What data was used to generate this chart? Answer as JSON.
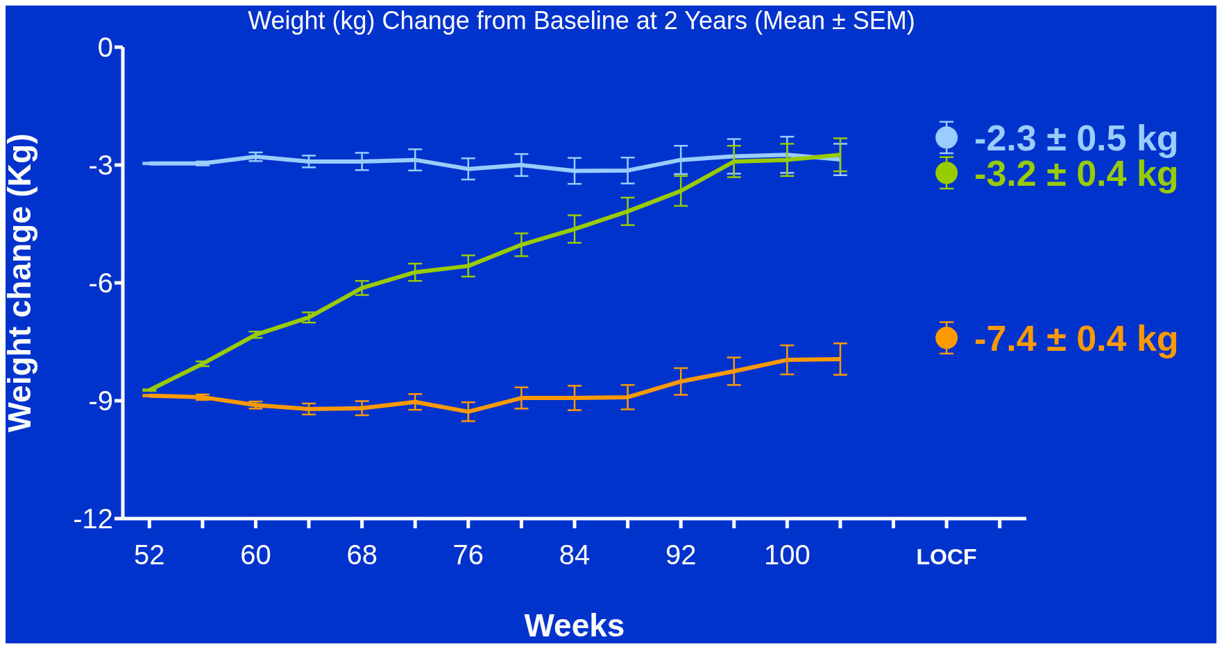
{
  "chart_data": {
    "type": "line",
    "title": "Weight (kg) Change from Baseline at 2 Years (Mean ± SEM)",
    "xlabel": "Weeks",
    "ylabel": "Weight change (Kg)",
    "categories": [
      "52",
      null,
      "60",
      null,
      "68",
      null,
      "76",
      null,
      "84",
      null,
      "92",
      null,
      "100",
      null,
      null,
      "LOCF",
      null
    ],
    "ylim": [
      -12,
      0
    ],
    "yticks": [
      0,
      -3,
      -6,
      -9,
      -12
    ],
    "marker": "none",
    "line_style": "solid",
    "series": [
      {
        "color": "#99ccff",
        "values": [
          -2.96,
          -2.96,
          -2.79,
          -2.91,
          -2.91,
          -2.87,
          -3.1,
          -3.0,
          -3.15,
          -3.14,
          -2.87,
          -2.78,
          -2.74,
          -2.86,
          null,
          null,
          null
        ],
        "errors": [
          0.02,
          0.05,
          0.11,
          0.15,
          0.22,
          0.27,
          0.27,
          0.28,
          0.33,
          0.33,
          0.36,
          0.44,
          0.46,
          0.4,
          null,
          null,
          null
        ]
      },
      {
        "color": "#99cc00",
        "values": [
          -8.73,
          -8.06,
          -7.32,
          -6.88,
          -6.13,
          -5.73,
          -5.57,
          -5.03,
          -4.63,
          -4.18,
          -3.66,
          -2.91,
          -2.87,
          -2.74,
          null,
          null,
          null
        ],
        "errors": [
          0.02,
          0.06,
          0.08,
          0.13,
          0.18,
          0.22,
          0.27,
          0.29,
          0.35,
          0.35,
          0.38,
          0.4,
          0.41,
          0.42,
          null,
          null,
          null
        ]
      },
      {
        "color": "#ff9900",
        "values": [
          -8.87,
          -8.91,
          -9.11,
          -9.21,
          -9.19,
          -9.03,
          -9.28,
          -8.93,
          -8.93,
          -8.91,
          -8.51,
          -8.25,
          -7.96,
          -7.94,
          null,
          null,
          null
        ],
        "errors": [
          0.02,
          0.07,
          0.09,
          0.14,
          0.18,
          0.2,
          0.24,
          0.27,
          0.31,
          0.31,
          0.34,
          0.35,
          0.37,
          0.4,
          null,
          null,
          null
        ]
      },
      {
        "type": "scatter",
        "marker": "circle",
        "color": "#99ccff",
        "x": [
          "LOCF"
        ],
        "values": [
          -2.3
        ],
        "errors": [
          0.4
        ]
      },
      {
        "type": "scatter",
        "marker": "circle",
        "color": "#99cc00",
        "x": [
          "LOCF"
        ],
        "values": [
          -3.2
        ],
        "errors": [
          0.4
        ]
      },
      {
        "type": "scatter",
        "marker": "circle",
        "color": "#ff9900",
        "x": [
          "LOCF"
        ],
        "values": [
          -7.4
        ],
        "errors": [
          0.4
        ]
      }
    ],
    "annotations": [
      {
        "text": "-2.3 ± 0.5 kg",
        "x": "LOCF",
        "y": -2.3
      },
      {
        "text": "-3.2 ± 0.4 kg",
        "x": "LOCF",
        "y": -3.2
      },
      {
        "text": "-7.4 ± 0.4 kg",
        "x": "LOCF",
        "y": -7.4
      }
    ]
  }
}
